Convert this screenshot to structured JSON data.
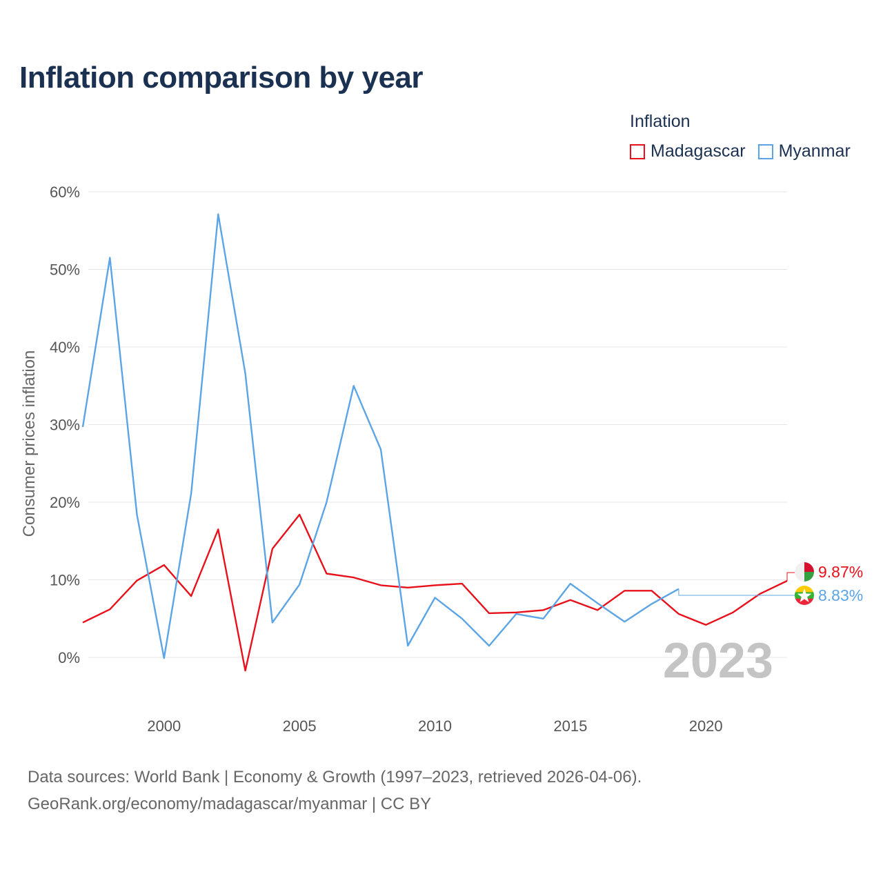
{
  "header": {
    "title": "Inflation comparison by year"
  },
  "legend": {
    "title": "Inflation",
    "items": [
      {
        "label": "Madagascar",
        "color": "#e8101a"
      },
      {
        "label": "Myanmar",
        "color": "#5ba4e6"
      }
    ]
  },
  "source": {
    "line1": "Data sources: World Bank | Economy & Growth (1997–2023, retrieved 2026-04-06).",
    "line2": "GeoRank.org/economy/madagascar/myanmar | CC BY"
  },
  "chart_data": {
    "type": "line",
    "title": "Inflation comparison by year",
    "xlabel": "",
    "ylabel": "Consumer prices inflation",
    "year_label": "2023",
    "xlim": [
      1997,
      2023
    ],
    "ylim": [
      -5,
      62
    ],
    "x_ticks": [
      2000,
      2005,
      2010,
      2015,
      2020
    ],
    "y_ticks": [
      0,
      10,
      20,
      30,
      40,
      50,
      60
    ],
    "y_tick_labels": [
      "0%",
      "10%",
      "20%",
      "30%",
      "40%",
      "50%",
      "60%"
    ],
    "grid": true,
    "legend_position": "top-right",
    "series": [
      {
        "name": "Madagascar",
        "color": "#e8101a",
        "end_label": "9.87%",
        "flag": "madagascar-flag-icon",
        "points": [
          [
            1997,
            4.5
          ],
          [
            1998,
            6.2
          ],
          [
            1999,
            9.9
          ],
          [
            2000,
            11.9
          ],
          [
            2001,
            7.9
          ],
          [
            2002,
            16.5
          ],
          [
            2003,
            -1.7
          ],
          [
            2004,
            14.0
          ],
          [
            2005,
            18.4
          ],
          [
            2006,
            10.8
          ],
          [
            2007,
            10.3
          ],
          [
            2008,
            9.3
          ],
          [
            2009,
            9.0
          ],
          [
            2010,
            9.3
          ],
          [
            2011,
            9.5
          ],
          [
            2012,
            5.7
          ],
          [
            2013,
            5.8
          ],
          [
            2014,
            6.1
          ],
          [
            2015,
            7.4
          ],
          [
            2016,
            6.1
          ],
          [
            2017,
            8.6
          ],
          [
            2018,
            8.6
          ],
          [
            2019,
            5.6
          ],
          [
            2020,
            4.2
          ],
          [
            2021,
            5.8
          ],
          [
            2022,
            8.2
          ],
          [
            2023,
            9.87
          ]
        ]
      },
      {
        "name": "Myanmar",
        "color": "#5ba4e6",
        "end_label": "8.83%",
        "flag": "myanmar-flag-icon",
        "points": [
          [
            1997,
            29.7
          ],
          [
            1998,
            51.5
          ],
          [
            1999,
            18.4
          ],
          [
            2000,
            -0.1
          ],
          [
            2001,
            21.1
          ],
          [
            2002,
            57.1
          ],
          [
            2003,
            36.6
          ],
          [
            2004,
            4.5
          ],
          [
            2005,
            9.4
          ],
          [
            2006,
            20.0
          ],
          [
            2007,
            35.0
          ],
          [
            2008,
            26.8
          ],
          [
            2009,
            1.5
          ],
          [
            2010,
            7.7
          ],
          [
            2011,
            5.0
          ],
          [
            2012,
            1.5
          ],
          [
            2013,
            5.6
          ],
          [
            2014,
            5.0
          ],
          [
            2015,
            9.5
          ],
          [
            2016,
            7.0
          ],
          [
            2017,
            4.6
          ],
          [
            2018,
            6.9
          ],
          [
            2019,
            8.83
          ]
        ]
      }
    ]
  }
}
